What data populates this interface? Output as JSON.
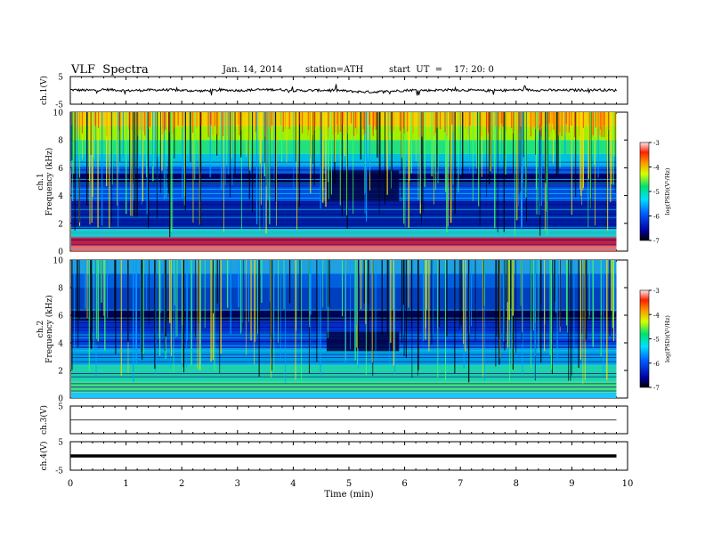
{
  "header": {
    "title": "VLF  Spectra",
    "date": "Jan. 14, 2014",
    "station": "station=ATH",
    "start_label": "start  UT  =",
    "start_time": "17: 20: 0"
  },
  "chart_data": [
    {
      "type": "line",
      "id": "ch1-waveform",
      "ylabel": "ch.1(V)",
      "xlim": [
        0,
        10
      ],
      "ylim": [
        -5,
        5
      ],
      "yticks": [
        -5,
        5
      ],
      "series": [
        {
          "values": [
            0.2,
            0.0,
            0.3,
            -0.1,
            0.1,
            0.2,
            0.0,
            -0.2,
            0.1,
            0.0,
            0.2,
            0.3,
            -0.1,
            0.0,
            0.1,
            -0.4,
            -0.6,
            -0.3,
            0.1,
            0.0,
            0.2,
            0.1,
            -0.1,
            0.0,
            0.2,
            0.1,
            0.0,
            0.1,
            0.2,
            0.0
          ]
        }
      ]
    },
    {
      "type": "heatmap",
      "id": "ch1-spectrogram",
      "ylabel": [
        "ch.1",
        "Frequency  (kHz)"
      ],
      "xlim": [
        0,
        10
      ],
      "ylim": [
        0,
        10
      ],
      "yticks": [
        0,
        2,
        4,
        6,
        8,
        10
      ],
      "colorbar": {
        "label": "log(PSD)(V²/Hz)",
        "range": [
          -7,
          -3
        ],
        "ticks": [
          -7,
          -6,
          -5,
          -4,
          -3
        ]
      }
    },
    {
      "type": "heatmap",
      "id": "ch2-spectrogram",
      "ylabel": [
        "ch.2",
        "Frequency  (kHz)"
      ],
      "xlim": [
        0,
        10
      ],
      "ylim": [
        0,
        10
      ],
      "yticks": [
        0,
        2,
        4,
        6,
        8,
        10
      ],
      "colorbar": {
        "label": "log(PSD)(V²/Hz)",
        "range": [
          -7,
          -3
        ],
        "ticks": [
          -7,
          -6,
          -5,
          -4,
          -3
        ]
      }
    },
    {
      "type": "line",
      "id": "ch3-waveform",
      "ylabel": "ch.3(V)",
      "xlim": [
        0,
        10
      ],
      "ylim": [
        -5,
        5
      ],
      "yticks": [
        5
      ],
      "series": [
        {
          "values": [
            0.0,
            0.0,
            0.0,
            0.0
          ]
        }
      ]
    },
    {
      "type": "line",
      "id": "ch4-waveform",
      "ylabel": "ch.4(V)",
      "xlim": [
        0,
        10
      ],
      "ylim": [
        -5,
        5
      ],
      "yticks": [
        -5,
        5
      ],
      "series": [
        {
          "values": [
            0.0,
            0.0,
            0.0,
            0.0
          ]
        }
      ]
    }
  ],
  "xaxis": {
    "label": "Time  (min)",
    "ticks": [
      0,
      1,
      2,
      3,
      4,
      5,
      6,
      7,
      8,
      9,
      10
    ]
  }
}
